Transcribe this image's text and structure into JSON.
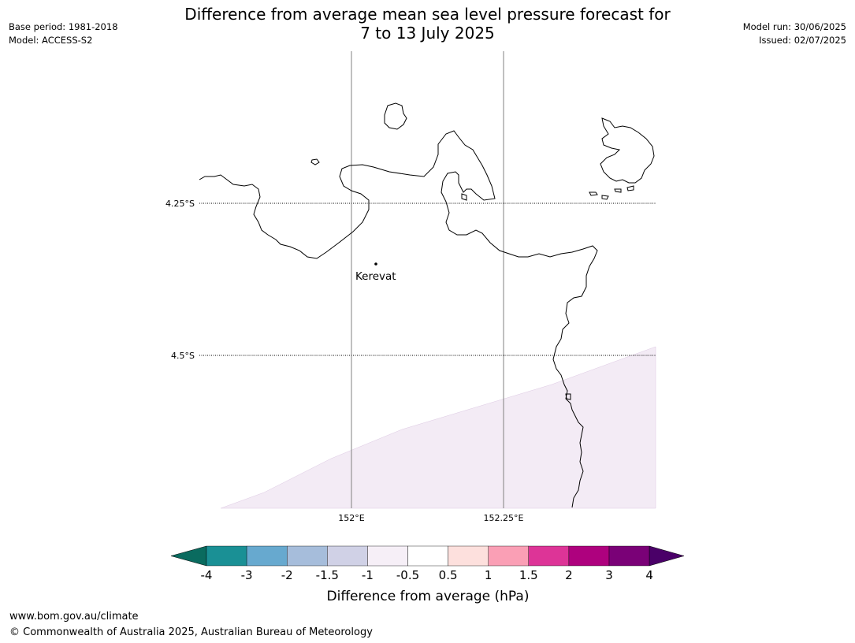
{
  "title": {
    "line1": "Difference from average mean sea level pressure forecast for",
    "line2": "7 to 13 July 2025"
  },
  "meta_left": {
    "base_period": "Base period: 1981-2018",
    "model": "Model: ACCESS-S2"
  },
  "meta_right": {
    "model_run": "Model run: 30/06/2025",
    "issued": "Issued: 02/07/2025"
  },
  "map": {
    "lat_labels": [
      "4.25°S",
      "4.5°S"
    ],
    "lon_labels": [
      "152°E",
      "152.25°E"
    ],
    "place": {
      "name": "Kerevat"
    },
    "shaded_region_color": "#f3ebf5",
    "coastline_color": "#000000"
  },
  "colorbar": {
    "label": "Difference from average (hPa)",
    "ticks": [
      "-4",
      "-3",
      "-2",
      "-1.5",
      "-1",
      "-0.5",
      "0.5",
      "1",
      "1.5",
      "2",
      "3",
      "4"
    ],
    "under_color": "#0a6b5f",
    "over_color": "#4a0068",
    "colors": [
      "#1a9095",
      "#67a9cf",
      "#a6bddb",
      "#d0d1e6",
      "#f6eff7",
      "#ffffff",
      "#fde0dd",
      "#fa9fb5",
      "#dd3497",
      "#ae017e",
      "#7a0177"
    ]
  },
  "footer": {
    "url": "www.bom.gov.au/climate",
    "copyright": "© Commonwealth of Australia 2025, Australian Bureau of Meteorology"
  }
}
